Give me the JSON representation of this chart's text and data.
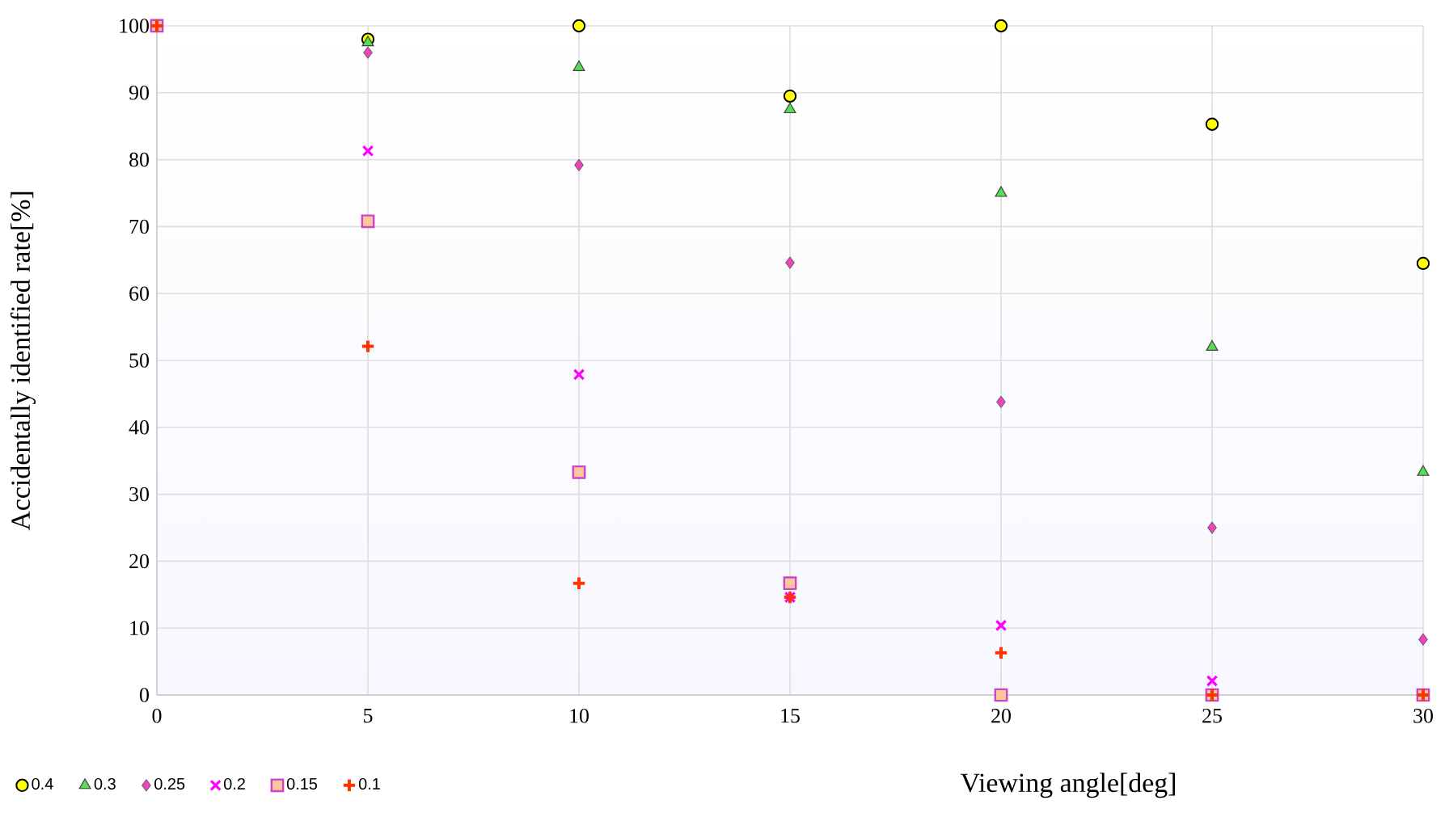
{
  "chart_data": {
    "type": "scatter",
    "xlabel": "Viewing angle[deg]",
    "ylabel": "Accidentally identified rate[%]",
    "x": [
      0,
      5,
      10,
      15,
      20,
      25,
      30
    ],
    "series": [
      {
        "name": "0.4",
        "color": "#ffff00",
        "marker": "circle",
        "values": [
          null,
          98,
          100,
          89.5,
          100,
          85.3,
          64.5
        ]
      },
      {
        "name": "0.3",
        "color": "#55dd55",
        "marker": "triangle",
        "values": [
          null,
          97.5,
          93.8,
          87.5,
          75,
          52,
          33.3
        ]
      },
      {
        "name": "0.25",
        "color": "#ee44bb",
        "marker": "diamond",
        "values": [
          null,
          96,
          79.2,
          64.6,
          43.8,
          25,
          8.3
        ]
      },
      {
        "name": "0.2",
        "color": "#ff00ff",
        "marker": "cross",
        "values": [
          null,
          81.3,
          47.9,
          14.6,
          10.4,
          2.1,
          null
        ]
      },
      {
        "name": "0.15",
        "color": "#fcc89a",
        "marker": "square",
        "values": [
          100,
          70.8,
          33.3,
          16.7,
          0,
          0,
          0
        ]
      },
      {
        "name": "0.1",
        "color": "#ff3300",
        "marker": "plus",
        "values": [
          100,
          52.1,
          16.7,
          14.6,
          6.3,
          0,
          0
        ]
      }
    ],
    "xlim": [
      0,
      30
    ],
    "xticks": [
      0,
      5,
      10,
      15,
      20,
      25,
      30
    ],
    "ylim": [
      0,
      100
    ],
    "yticks": [
      0,
      10,
      20,
      30,
      40,
      50,
      60,
      70,
      80,
      90,
      100
    ],
    "grid": true,
    "legend": "bottom left"
  }
}
